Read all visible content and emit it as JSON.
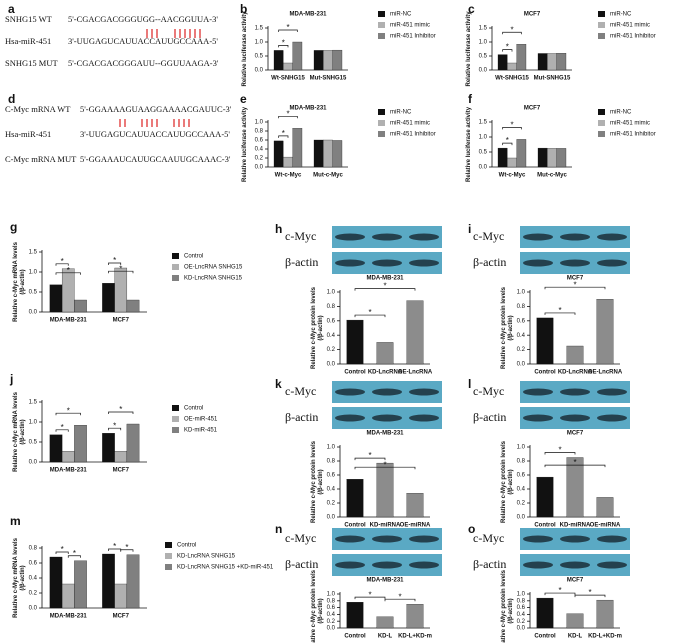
{
  "sequences": [
    {
      "panel": "a",
      "rows": [
        {
          "label": "SNHG15 WT",
          "seq": "5'-CGACGACGGGUGG--AACGGUUA-3'"
        },
        {
          "label": "Hsa-miR-451",
          "seq": "3'-UUGAGUCAUUACCAUUGCCAAA-5'"
        },
        {
          "label": "SNHG15 MUT",
          "seq": "5'-CGACGACGGGAUU--GGUUAAGA-3'"
        }
      ]
    },
    {
      "panel": "d",
      "rows": [
        {
          "label": "C-Myc mRNA WT",
          "seq": "5'-GGAAAAGUAAGGAAAACGAUUC-3'"
        },
        {
          "label": "Hsa-miR-451",
          "seq": "3'-UUGAGUCAUUACCAUUGCCAAA-5'"
        },
        {
          "label": "C-Myc mRNA MUT",
          "seq": "5'-GGAAAUCAUUGCAAUUGCAAAC-3'"
        }
      ]
    }
  ],
  "chart_data": [
    {
      "type": "bar",
      "panel": "b",
      "title": "MDA-MB-231",
      "ylabel": [
        "Relative luciferase activity"
      ],
      "categories": [
        "Wt-SNHG15",
        "Mut-SNHG15"
      ],
      "series": [
        {
          "name": "miR-NC",
          "color": "#111111",
          "values": [
            0.7,
            0.7
          ]
        },
        {
          "name": "miR-451 mimic",
          "color": "#b0b0b0",
          "values": [
            0.25,
            0.7
          ]
        },
        {
          "name": "miR-451 Inhibitor",
          "color": "#808080",
          "values": [
            1.0,
            0.71
          ]
        }
      ],
      "ylim": [
        0,
        1.5
      ],
      "yticks": [
        {
          "value": 0,
          "label": "0.0"
        },
        0.5,
        {
          "value": 1,
          "label": "1.0"
        },
        1.5
      ],
      "brackets": [
        {
          "text": "*",
          "from": [
            0,
            0
          ],
          "to": [
            0,
            1
          ]
        },
        {
          "text": "*",
          "from": [
            0,
            0
          ],
          "to": [
            0,
            2
          ]
        }
      ]
    },
    {
      "type": "bar",
      "panel": "c",
      "title": "MCF7",
      "ylabel": [
        "Relative luciferase activity"
      ],
      "categories": [
        "Wt-SNHG15",
        "Mut-SNHG15"
      ],
      "series": [
        {
          "name": "miR-NC",
          "color": "#111111",
          "values": [
            0.55,
            0.59
          ]
        },
        {
          "name": "miR-451 mimic",
          "color": "#b0b0b0",
          "values": [
            0.25,
            0.59
          ]
        },
        {
          "name": "miR-451 Inhibitor",
          "color": "#808080",
          "values": [
            0.92,
            0.6
          ]
        }
      ],
      "ylim": [
        0,
        1.5
      ],
      "yticks": [
        {
          "value": 0,
          "label": "0.0"
        },
        0.5,
        {
          "value": 1,
          "label": "1.0"
        },
        1.5
      ],
      "brackets": [
        {
          "text": "*",
          "from": [
            0,
            0
          ],
          "to": [
            0,
            1
          ]
        },
        {
          "text": "*",
          "from": [
            0,
            0
          ],
          "to": [
            0,
            2
          ]
        }
      ]
    },
    {
      "type": "bar",
      "panel": "e",
      "title": "MDA-MB-231",
      "ylabel": [
        "Relative luciferase activity"
      ],
      "categories": [
        "Wt-c-Myc",
        "Mut-c-Myc"
      ],
      "series": [
        {
          "name": "miR-NC",
          "color": "#111111",
          "values": [
            0.58,
            0.6
          ]
        },
        {
          "name": "miR-451 mimic",
          "color": "#b0b0b0",
          "values": [
            0.22,
            0.6
          ]
        },
        {
          "name": "miR-451 Inhibitor",
          "color": "#808080",
          "values": [
            0.86,
            0.59
          ]
        }
      ],
      "ylim": [
        0,
        1
      ],
      "yticks": [
        {
          "value": 0,
          "label": "0.0"
        },
        0.2,
        0.4,
        0.6,
        0.8,
        {
          "value": 1,
          "label": "1.0"
        }
      ],
      "brackets": [
        {
          "text": "*",
          "from": [
            0,
            0
          ],
          "to": [
            0,
            1
          ]
        },
        {
          "text": "*",
          "from": [
            0,
            0
          ],
          "to": [
            0,
            2
          ]
        }
      ]
    },
    {
      "type": "bar",
      "panel": "f",
      "title": "MCF7",
      "ylabel": [
        "Relative luciferase activity"
      ],
      "categories": [
        "Wt-c-Myc",
        "Mut-c-Myc"
      ],
      "series": [
        {
          "name": "miR-NC",
          "color": "#111111",
          "values": [
            0.63,
            0.63
          ]
        },
        {
          "name": "miR-451 mimic",
          "color": "#b0b0b0",
          "values": [
            0.3,
            0.62
          ]
        },
        {
          "name": "miR-451 Inhibitor",
          "color": "#808080",
          "values": [
            0.92,
            0.62
          ]
        }
      ],
      "ylim": [
        0,
        1.5
      ],
      "yticks": [
        {
          "value": 0,
          "label": "0.0"
        },
        0.5,
        {
          "value": 1,
          "label": "1.0"
        },
        1.5
      ],
      "brackets": [
        {
          "text": "*",
          "from": [
            0,
            0
          ],
          "to": [
            0,
            1
          ]
        },
        {
          "text": "*",
          "from": [
            0,
            0
          ],
          "to": [
            0,
            2
          ]
        }
      ]
    },
    {
      "type": "bar",
      "panel": "g",
      "ylabel": [
        "Relative c-Myc mRNA levels",
        "(/β-actin)"
      ],
      "categories": [
        "MDA-MB-231",
        "MCF7"
      ],
      "series": [
        {
          "name": "Control",
          "color": "#111111",
          "values": [
            0.68,
            0.72
          ]
        },
        {
          "name": "OE-LncRNA SNHG15",
          "color": "#b0b0b0",
          "values": [
            1.08,
            1.1
          ]
        },
        {
          "name": "KD-LncRNA SNHG15",
          "color": "#808080",
          "values": [
            0.3,
            0.3
          ]
        }
      ],
      "ylim": [
        0,
        1.5
      ],
      "yticks": [
        {
          "value": 0,
          "label": "0.0"
        },
        0.5,
        {
          "value": 1,
          "label": "1.0"
        },
        1.5
      ],
      "brackets": [
        {
          "text": "*",
          "from": [
            0,
            0
          ],
          "to": [
            0,
            1
          ]
        },
        {
          "text": "*",
          "from": [
            0,
            0
          ],
          "to": [
            0,
            2
          ]
        },
        {
          "text": "*",
          "from": [
            1,
            0
          ],
          "to": [
            1,
            1
          ]
        },
        {
          "text": "*",
          "from": [
            1,
            0
          ],
          "to": [
            1,
            2
          ]
        }
      ]
    },
    {
      "type": "bar",
      "panel": "h",
      "title": "MDA-MB-231",
      "blot_labels": [
        "c-Myc",
        "β-actin"
      ],
      "ylabel": [
        "Relative c-Myc protein levels",
        "(/β-actin)"
      ],
      "categories": [
        "Control",
        "KD-LncRNA",
        "OE-LncRNA"
      ],
      "values": [
        0.61,
        0.3,
        0.88
      ],
      "colors": [
        "#111111",
        "#8c8c8c",
        "#8c8c8c"
      ],
      "ylim": [
        0,
        1
      ],
      "yticks": [
        {
          "value": 0,
          "label": "0.0"
        },
        0.2,
        0.4,
        0.6,
        0.8,
        {
          "value": 1,
          "label": "1.0"
        }
      ],
      "brackets": [
        {
          "text": "*",
          "from": [
            0,
            0
          ],
          "to": [
            1,
            0
          ]
        },
        {
          "text": "*",
          "from": [
            0,
            0
          ],
          "to": [
            2,
            0
          ]
        }
      ]
    },
    {
      "type": "bar",
      "panel": "i",
      "title": "MCF7",
      "blot_labels": [
        "c-Myc",
        "β-actin"
      ],
      "ylabel": [
        "Relative c-Myc protein levels",
        "(/β-actin)"
      ],
      "categories": [
        "Control",
        "KD-LncRNA",
        "OE-LncRNA"
      ],
      "values": [
        0.64,
        0.25,
        0.9
      ],
      "colors": [
        "#111111",
        "#8c8c8c",
        "#8c8c8c"
      ],
      "ylim": [
        0,
        1
      ],
      "yticks": [
        {
          "value": 0,
          "label": "0.0"
        },
        0.2,
        0.4,
        0.6,
        0.8,
        {
          "value": 1,
          "label": "1.0"
        }
      ],
      "brackets": [
        {
          "text": "*",
          "from": [
            0,
            0
          ],
          "to": [
            1,
            0
          ]
        },
        {
          "text": "*",
          "from": [
            0,
            0
          ],
          "to": [
            2,
            0
          ]
        }
      ]
    },
    {
      "type": "bar",
      "panel": "j",
      "ylabel": [
        "Relative c-Myc mRNA levels",
        "(/β-actin)"
      ],
      "categories": [
        "MDA-MB-231",
        "MCF7"
      ],
      "series": [
        {
          "name": "Control",
          "color": "#111111",
          "values": [
            0.68,
            0.72
          ]
        },
        {
          "name": "OE-miR-451",
          "color": "#b0b0b0",
          "values": [
            0.27,
            0.27
          ]
        },
        {
          "name": "KD-miR-451",
          "color": "#808080",
          "values": [
            0.92,
            0.95
          ]
        }
      ],
      "ylim": [
        0,
        1.5
      ],
      "yticks": [
        {
          "value": 0,
          "label": "0.0"
        },
        0.5,
        {
          "value": 1,
          "label": "1.0"
        },
        1.5
      ],
      "brackets": [
        {
          "text": "*",
          "from": [
            0,
            0
          ],
          "to": [
            0,
            1
          ]
        },
        {
          "text": "*",
          "from": [
            0,
            0
          ],
          "to": [
            0,
            2
          ]
        },
        {
          "text": "*",
          "from": [
            1,
            0
          ],
          "to": [
            1,
            1
          ]
        },
        {
          "text": "*",
          "from": [
            1,
            0
          ],
          "to": [
            1,
            2
          ]
        }
      ]
    },
    {
      "type": "bar",
      "panel": "k",
      "title": "MDA-MB-231",
      "blot_labels": [
        "c-Myc",
        "β-actin"
      ],
      "ylabel": [
        "Relative c-Myc protein levels",
        "(/β-actin)"
      ],
      "categories": [
        "Control",
        "KD-miRNA",
        "OE-miRNA"
      ],
      "values": [
        0.54,
        0.77,
        0.34
      ],
      "colors": [
        "#111111",
        "#8c8c8c",
        "#8c8c8c"
      ],
      "ylim": [
        0,
        1
      ],
      "yticks": [
        {
          "value": 0,
          "label": "0.0"
        },
        0.2,
        0.4,
        0.6,
        0.8,
        {
          "value": 1,
          "label": "1.0"
        }
      ],
      "brackets": [
        {
          "text": "*",
          "from": [
            0,
            0
          ],
          "to": [
            1,
            0
          ]
        },
        {
          "text": "*",
          "from": [
            0,
            0
          ],
          "to": [
            2,
            0
          ]
        }
      ]
    },
    {
      "type": "bar",
      "panel": "l",
      "title": "MCF7",
      "blot_labels": [
        "c-Myc",
        "β-actin"
      ],
      "ylabel": [
        "Relative c-Myc protein levels",
        "(/β-actin)"
      ],
      "categories": [
        "Control",
        "KD-miRNA",
        "OE-miRNA"
      ],
      "values": [
        0.57,
        0.85,
        0.28
      ],
      "colors": [
        "#111111",
        "#8c8c8c",
        "#8c8c8c"
      ],
      "ylim": [
        0,
        1
      ],
      "yticks": [
        {
          "value": 0,
          "label": "0.0"
        },
        0.2,
        0.4,
        0.6,
        0.8,
        {
          "value": 1,
          "label": "1.0"
        }
      ],
      "brackets": [
        {
          "text": "*",
          "from": [
            0,
            0
          ],
          "to": [
            1,
            0
          ]
        },
        {
          "text": "*",
          "from": [
            0,
            0
          ],
          "to": [
            2,
            0
          ]
        }
      ]
    },
    {
      "type": "bar",
      "panel": "m",
      "ylabel": [
        "Relative c-Myc mRNA levels",
        "(/β-actin)"
      ],
      "categories": [
        "MDA-MB-231",
        "MCF7"
      ],
      "series": [
        {
          "name": "Control",
          "color": "#111111",
          "values": [
            0.68,
            0.72
          ]
        },
        {
          "name": "KD-LncRNA SNHG15",
          "color": "#b0b0b0",
          "values": [
            0.32,
            0.32
          ]
        },
        {
          "name": "KD-LncRNA SNHG15 +KD-miR-451",
          "color": "#808080",
          "values": [
            0.63,
            0.71
          ]
        }
      ],
      "ylim": [
        0,
        0.8
      ],
      "yticks": [
        {
          "value": 0,
          "label": "0.0"
        },
        0.2,
        0.4,
        0.6,
        0.8
      ],
      "brackets": [
        {
          "text": "*",
          "from": [
            0,
            0
          ],
          "to": [
            0,
            1
          ]
        },
        {
          "text": "*",
          "from": [
            0,
            1
          ],
          "to": [
            0,
            2
          ]
        },
        {
          "text": "*",
          "from": [
            1,
            0
          ],
          "to": [
            1,
            1
          ]
        },
        {
          "text": "*",
          "from": [
            1,
            1
          ],
          "to": [
            1,
            2
          ]
        }
      ]
    },
    {
      "type": "bar",
      "panel": "n",
      "title": "MDA-MB-231",
      "blot_labels": [
        "c-Myc",
        "β-actin"
      ],
      "ylabel": [
        "Relative c-Myc protein levels",
        "(/β-actin)"
      ],
      "categories": [
        "Control",
        "KD-L",
        "KD-L+KD-m"
      ],
      "values": [
        0.76,
        0.33,
        0.7
      ],
      "colors": [
        "#111111",
        "#8c8c8c",
        "#8c8c8c"
      ],
      "ylim": [
        0,
        1
      ],
      "yticks": [
        {
          "value": 0,
          "label": "0.0"
        },
        0.2,
        0.4,
        0.6,
        0.8,
        {
          "value": 1,
          "label": "1.0"
        }
      ],
      "brackets": [
        {
          "text": "*",
          "from": [
            0,
            0
          ],
          "to": [
            1,
            0
          ]
        },
        {
          "text": "*",
          "from": [
            1,
            0
          ],
          "to": [
            2,
            0
          ]
        }
      ]
    },
    {
      "type": "bar",
      "panel": "o",
      "title": "MCF7",
      "blot_labels": [
        "c-Myc",
        "β-actin"
      ],
      "ylabel": [
        "Relative c-Myc protein levels",
        "(/β-actin)"
      ],
      "categories": [
        "Control",
        "KD-L",
        "KD-L+KD-m"
      ],
      "values": [
        0.88,
        0.42,
        0.82
      ],
      "colors": [
        "#111111",
        "#8c8c8c",
        "#8c8c8c"
      ],
      "ylim": [
        0,
        1
      ],
      "yticks": [
        {
          "value": 0,
          "label": "0.0"
        },
        0.2,
        0.4,
        0.6,
        0.8,
        {
          "value": 1,
          "label": "1.0"
        }
      ],
      "brackets": [
        {
          "text": "*",
          "from": [
            0,
            0
          ],
          "to": [
            1,
            0
          ]
        },
        {
          "text": "*",
          "from": [
            1,
            0
          ],
          "to": [
            2,
            0
          ]
        }
      ]
    }
  ]
}
